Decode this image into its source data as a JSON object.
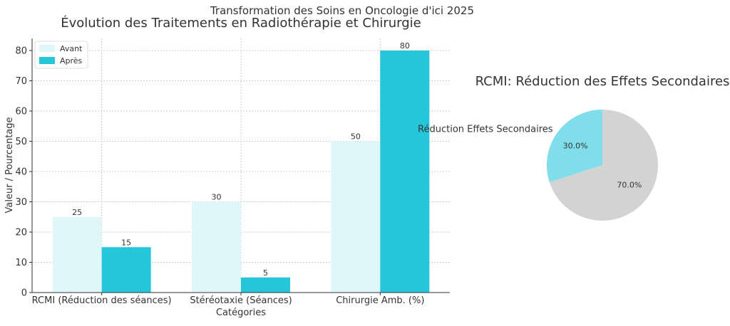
{
  "figure": {
    "suptitle": "Transformation des Soins en Oncologie d'ici 2025"
  },
  "chart_data": [
    {
      "type": "bar",
      "title": "Évolution des Traitements en Radiothérapie et Chirurgie",
      "xlabel": "Catégories",
      "ylabel": "Valeur / Pourcentage",
      "categories": [
        "RCMI (Réduction des séances)",
        "Stéréotaxie (Séances)",
        "Chirurgie Amb. (%)"
      ],
      "series": [
        {
          "name": "Avant",
          "values": [
            25,
            30,
            50
          ],
          "color": "#e0f7fa"
        },
        {
          "name": "Après",
          "values": [
            15,
            5,
            80
          ],
          "color": "#26c6da"
        }
      ],
      "ylim": [
        0,
        84
      ],
      "yticks": [
        0,
        10,
        20,
        30,
        40,
        50,
        60,
        70,
        80
      ],
      "grid": true,
      "legend_position": "top-left"
    },
    {
      "type": "pie",
      "title": "RCMI: Réduction des Effets Secondaires",
      "slices": [
        {
          "label": "Réduction Effets Secondaires",
          "value": 30.0,
          "pct_label": "30.0%",
          "color": "#80deea"
        },
        {
          "label": "",
          "value": 70.0,
          "pct_label": "70.0%",
          "color": "#d3d3d3"
        }
      ]
    }
  ]
}
